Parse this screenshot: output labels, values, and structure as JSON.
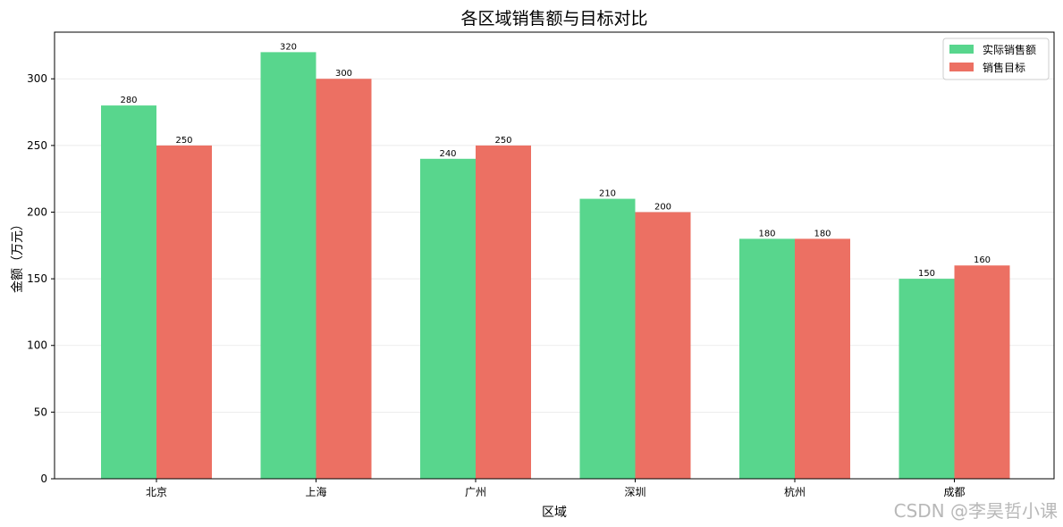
{
  "chart_data": {
    "type": "bar",
    "title": "各区域销售额与目标对比",
    "xlabel": "区域",
    "ylabel": "金额（万元）",
    "categories": [
      "北京",
      "上海",
      "广州",
      "深圳",
      "杭州",
      "成都"
    ],
    "series": [
      {
        "name": "实际销售额",
        "values": [
          280,
          320,
          240,
          210,
          180,
          150
        ],
        "color": "#58d68d"
      },
      {
        "name": "销售目标",
        "values": [
          250,
          300,
          250,
          200,
          180,
          160
        ],
        "color": "#ec7063"
      }
    ],
    "ylim": [
      0,
      335
    ],
    "yticks": [
      0,
      50,
      100,
      150,
      200,
      250,
      300
    ],
    "grid": "horizontal",
    "legend_position": "top-right"
  },
  "watermark": "CSDN @李昊哲小课"
}
